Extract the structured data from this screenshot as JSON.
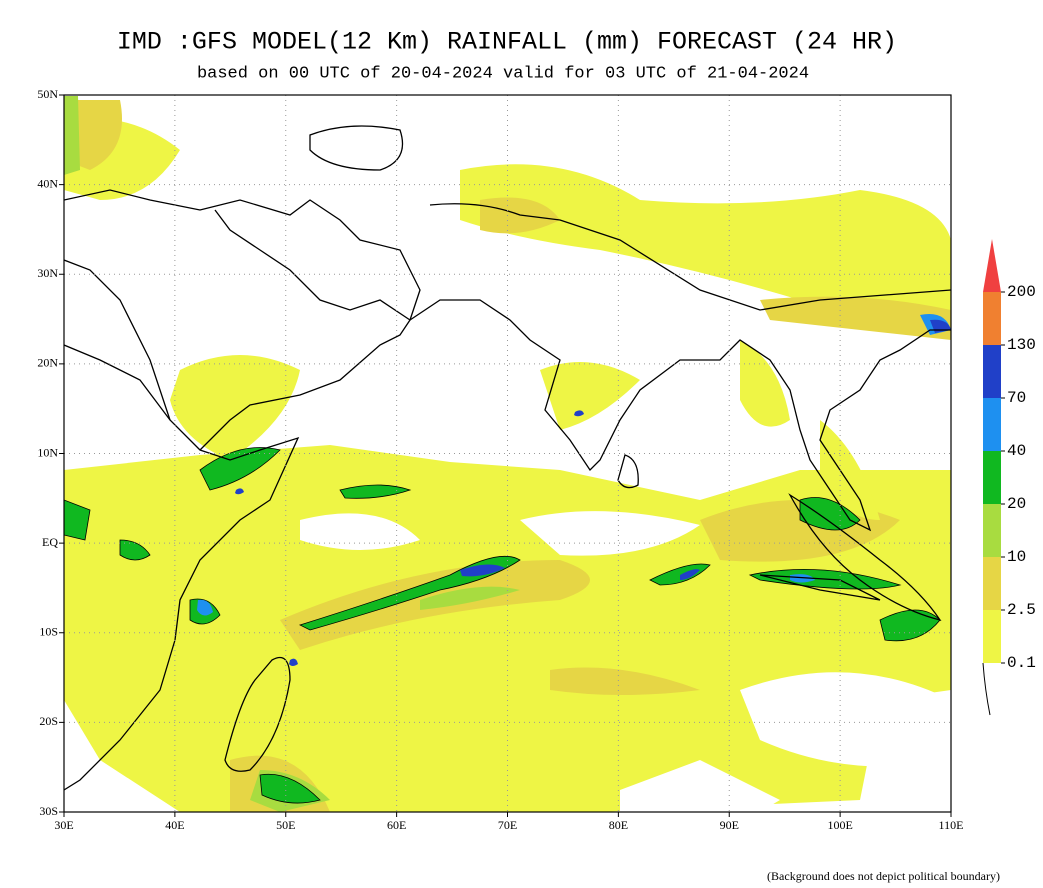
{
  "title": "IMD :GFS MODEL(12 Km) RAINFALL (mm) FORECAST (24 HR)",
  "subtitle": "based on 00 UTC of 20-04-2024 valid for 03 UTC of 21-04-2024",
  "map": {
    "lonlim": [
      30,
      110
    ],
    "latlim": [
      -30,
      50
    ],
    "lon_ticks": [
      {
        "value": 30,
        "label": "30E"
      },
      {
        "value": 40,
        "label": "40E"
      },
      {
        "value": 50,
        "label": "50E"
      },
      {
        "value": 60,
        "label": "60E"
      },
      {
        "value": 70,
        "label": "70E"
      },
      {
        "value": 80,
        "label": "80E"
      },
      {
        "value": 90,
        "label": "90E"
      },
      {
        "value": 100,
        "label": "100E"
      },
      {
        "value": 110,
        "label": "110E"
      }
    ],
    "lat_ticks": [
      {
        "value": 50,
        "label": "50N"
      },
      {
        "value": 40,
        "label": "40N"
      },
      {
        "value": 30,
        "label": "30N"
      },
      {
        "value": 20,
        "label": "20N"
      },
      {
        "value": 10,
        "label": "10N"
      },
      {
        "value": 0,
        "label": "EQ"
      },
      {
        "value": -10,
        "label": "10S"
      },
      {
        "value": -20,
        "label": "20S"
      },
      {
        "value": -30,
        "label": "30S"
      }
    ]
  },
  "legend": {
    "levels": [
      0.1,
      2.5,
      10,
      20,
      40,
      70,
      130,
      200
    ],
    "colors": [
      "#eef545",
      "#e6d645",
      "#a8dc40",
      "#10b820",
      "#1e90f0",
      "#2040c8",
      "#f08030",
      "#f04040"
    ]
  },
  "footnote": "(Background does not depict political boundary)"
}
